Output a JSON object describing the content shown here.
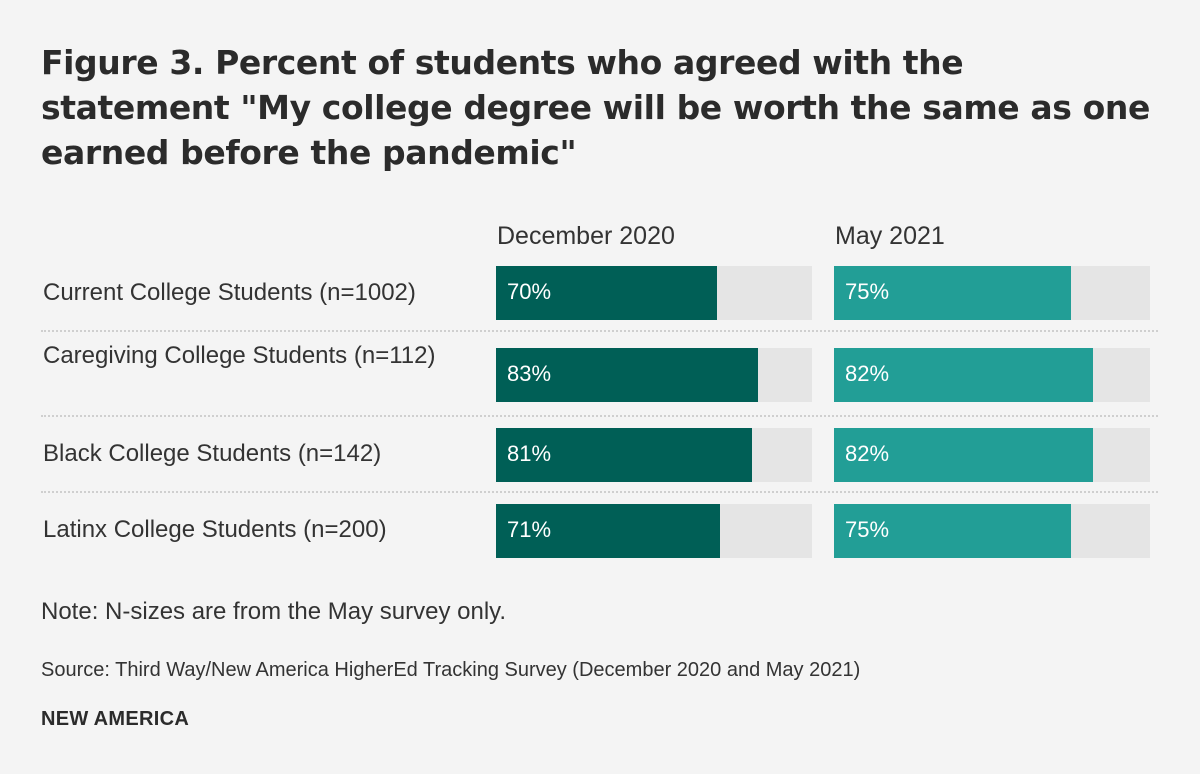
{
  "chart_data": {
    "type": "bar",
    "orientation": "horizontal",
    "title": "Figure 3. Percent of students who agreed with the statement \"My college degree will be worth the same as one earned before the pandemic\"",
    "categories": [
      "Current College Students (n=1002)",
      "Caregiving College Students (n=112)",
      "Black College Students (n=142)",
      "Latinx College Students (n=200)"
    ],
    "series": [
      {
        "name": "December 2020",
        "color": "#005f56",
        "values": [
          70,
          83,
          81,
          71
        ],
        "labels": [
          "70%",
          "83%",
          "81%",
          "71%"
        ]
      },
      {
        "name": "May 2021",
        "color": "#229e96",
        "values": [
          75,
          82,
          82,
          75
        ],
        "labels": [
          "75%",
          "82%",
          "82%",
          "75%"
        ]
      }
    ],
    "xlim": [
      0,
      100
    ],
    "track_color": "#e5e5e5",
    "note": "Note: N-sizes are from the May survey only.",
    "source": "Source: Third Way/New America HigherEd Tracking Survey (December 2020 and May 2021)",
    "brand": "NEW AMERICA"
  }
}
